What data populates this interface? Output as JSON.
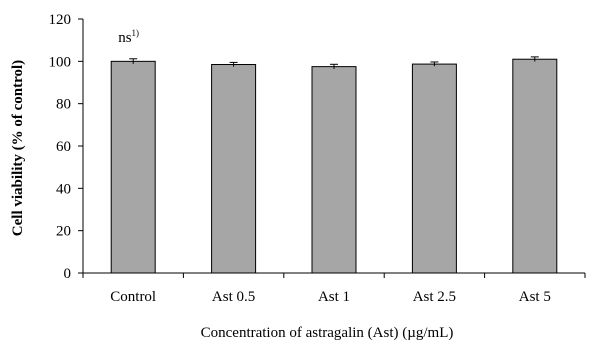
{
  "chart_data": {
    "type": "bar",
    "title": "",
    "categories": [
      "Control",
      "Ast 0.5",
      "Ast 1",
      "Ast 2.5",
      "Ast 5"
    ],
    "series": [
      {
        "values": [
          100.0,
          98.5,
          97.5,
          98.7,
          101.0
        ],
        "errors": [
          1.2,
          1.0,
          1.1,
          1.0,
          1.1
        ]
      }
    ],
    "xlabel": "Concentration of astragalin (Ast) (µg/mL)",
    "ylabel": "Cell viability (% of control)",
    "ylim": [
      0,
      120
    ],
    "yticks": [
      0,
      20,
      40,
      60,
      80,
      100,
      120
    ],
    "grid": false,
    "bar_color": "#a6a6a6",
    "annotation": {
      "text": "ns",
      "superscript": "1)"
    }
  }
}
